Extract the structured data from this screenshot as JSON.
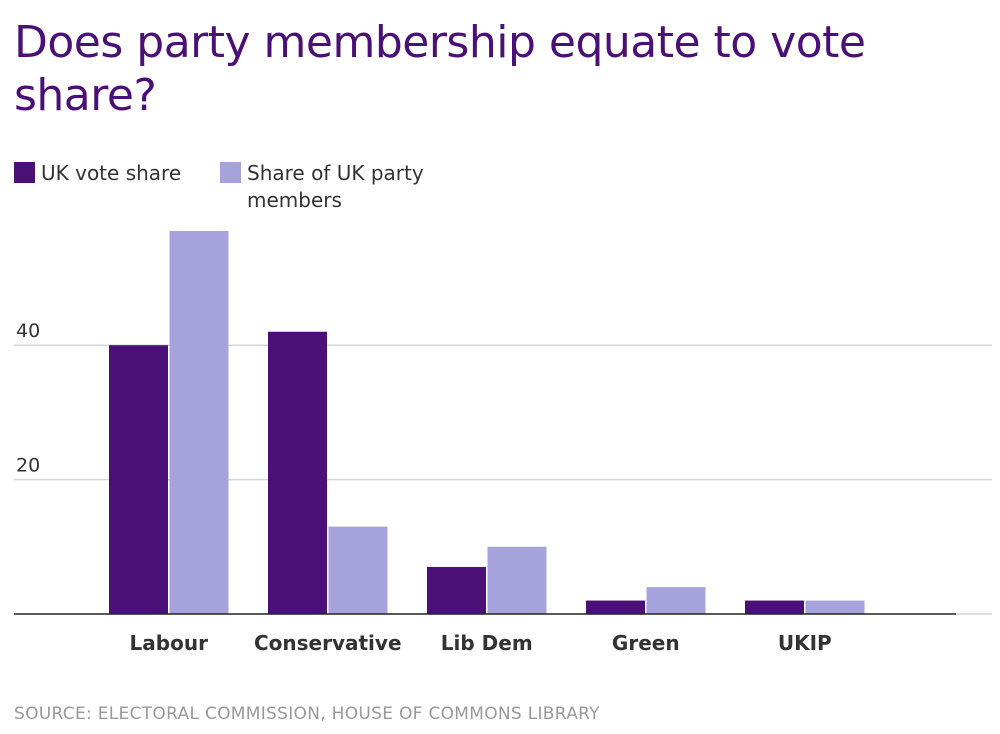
{
  "chart_data": {
    "type": "bar",
    "title": "Does party membership equate to vote share?",
    "categories": [
      "Labour",
      "Conservative",
      "Lib Dem",
      "Green",
      "UKIP"
    ],
    "series": [
      {
        "name": "UK vote share",
        "color": "#4b0f78",
        "values": [
          40,
          42,
          7,
          2,
          2
        ]
      },
      {
        "name": "Share of UK party members",
        "color": "#a6a2db",
        "values": [
          57,
          13,
          10,
          4,
          2
        ]
      }
    ],
    "yticks": [
      20,
      40
    ],
    "ylim": [
      0,
      60
    ],
    "grid": true,
    "legend_position": "top-left",
    "xlabel": "",
    "ylabel": "",
    "source": "SOURCE: ELECTORAL COMMISSION, HOUSE OF COMMONS LIBRARY"
  }
}
